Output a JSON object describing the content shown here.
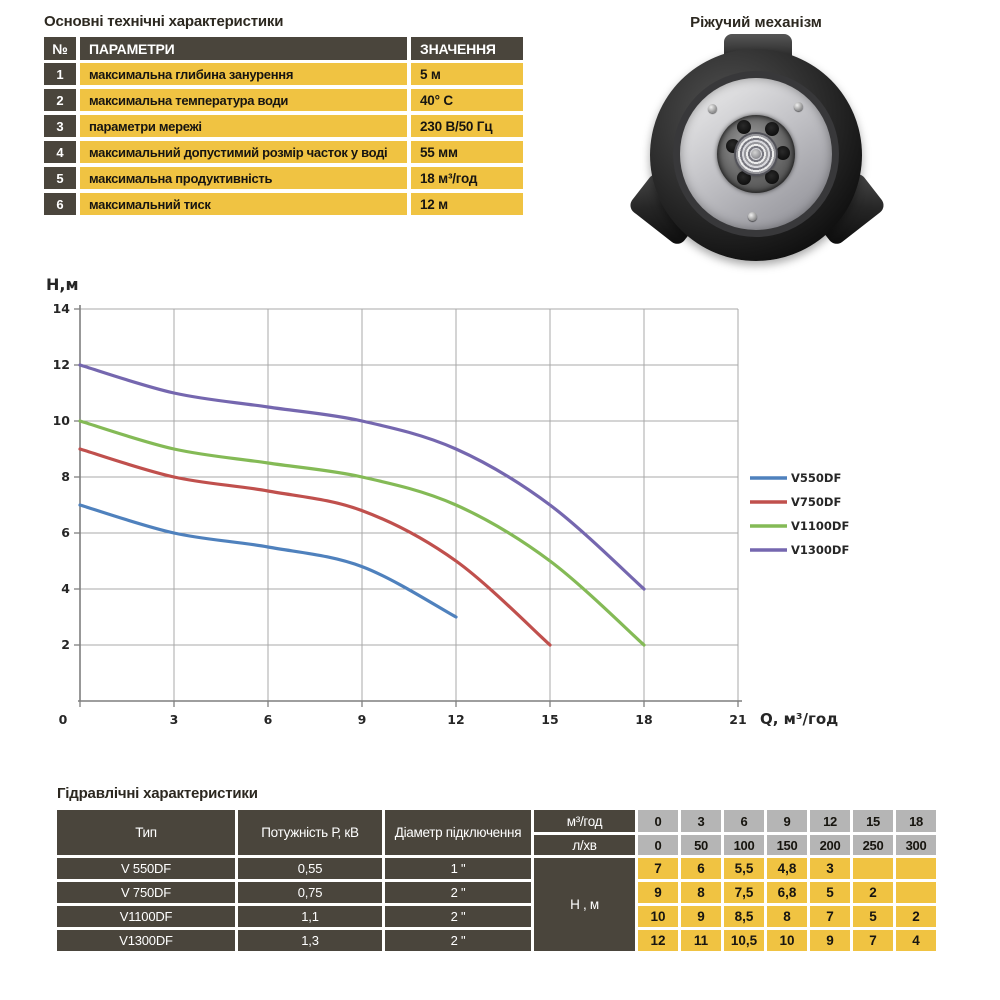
{
  "colors": {
    "table_yellow": "#f0c342",
    "table_dark": "#4a453c",
    "table_gray": "#b5b5b5"
  },
  "top_table": {
    "title": "Основні технічні характеристики",
    "headers": {
      "num": "№",
      "param": "ПАРАМЕТРИ",
      "value": "ЗНАЧЕННЯ"
    },
    "rows": [
      {
        "num": "1",
        "param": "максимальна глибина занурення",
        "value": "5 м"
      },
      {
        "num": "2",
        "param": "максимальна температура води",
        "value": "40° С"
      },
      {
        "num": "3",
        "param": "параметри мережі",
        "value": "230 В/50 Гц"
      },
      {
        "num": "4",
        "param": "максимальний допустимий розмір часток у воді",
        "value": "55 мм"
      },
      {
        "num": "5",
        "param": "максимальна продуктивність",
        "value": "18 м³/год"
      },
      {
        "num": "6",
        "param": "максимальний тиск",
        "value": "12 м"
      }
    ]
  },
  "cutter": {
    "title": "Ріжучий механізм"
  },
  "chart_data": {
    "type": "line",
    "title": "",
    "xlabel": "Q,  м³/год",
    "ylabel": "Н,м",
    "xlim": [
      0,
      21
    ],
    "ylim": [
      0,
      14
    ],
    "x_ticks": [
      0,
      3,
      6,
      9,
      12,
      15,
      18,
      21
    ],
    "y_ticks": [
      2,
      4,
      6,
      8,
      10,
      12,
      14
    ],
    "grid": true,
    "legend_position": "right",
    "series": [
      {
        "name": "V550DF",
        "color": "#4f81bd",
        "points": [
          [
            0,
            7
          ],
          [
            3,
            6
          ],
          [
            6,
            5.5
          ],
          [
            9,
            4.8
          ],
          [
            12,
            3
          ]
        ]
      },
      {
        "name": "V750DF",
        "color": "#c0504d",
        "points": [
          [
            0,
            9
          ],
          [
            3,
            8
          ],
          [
            6,
            7.5
          ],
          [
            9,
            6.8
          ],
          [
            12,
            5
          ],
          [
            15,
            2
          ]
        ]
      },
      {
        "name": "V1100DF",
        "color": "#84ba56",
        "points": [
          [
            0,
            10
          ],
          [
            3,
            9
          ],
          [
            6,
            8.5
          ],
          [
            9,
            8
          ],
          [
            12,
            7
          ],
          [
            15,
            5
          ],
          [
            18,
            2
          ]
        ]
      },
      {
        "name": "V1300DF",
        "color": "#7567af",
        "points": [
          [
            0,
            12
          ],
          [
            3,
            11
          ],
          [
            6,
            10.5
          ],
          [
            9,
            10
          ],
          [
            12,
            9
          ],
          [
            15,
            7
          ],
          [
            18,
            4
          ]
        ]
      }
    ]
  },
  "bottom_table": {
    "title": "Гідравлічні характеристики",
    "col_headers": {
      "type": "Тип",
      "power": "Потужність Р, кВ",
      "diameter": "Діаметр підключення"
    },
    "flow_headers": {
      "m3h": "м³/год",
      "lmin": "л/хв"
    },
    "h_label": "Н , м",
    "flow_m3h": [
      "0",
      "3",
      "6",
      "9",
      "12",
      "15",
      "18"
    ],
    "flow_lmin": [
      "0",
      "50",
      "100",
      "150",
      "200",
      "250",
      "300"
    ],
    "rows": [
      {
        "type": "V 550DF",
        "power": "0,55",
        "diameter": "1 \"",
        "h": [
          "7",
          "6",
          "5,5",
          "4,8",
          "3",
          "",
          ""
        ]
      },
      {
        "type": "V 750DF",
        "power": "0,75",
        "diameter": "2 \"",
        "h": [
          "9",
          "8",
          "7,5",
          "6,8",
          "5",
          "2",
          ""
        ]
      },
      {
        "type": "V1100DF",
        "power": "1,1",
        "diameter": "2 \"",
        "h": [
          "10",
          "9",
          "8,5",
          "8",
          "7",
          "5",
          "2"
        ]
      },
      {
        "type": "V1300DF",
        "power": "1,3",
        "diameter": "2 \"",
        "h": [
          "12",
          "11",
          "10,5",
          "10",
          "9",
          "7",
          "4"
        ]
      }
    ]
  }
}
